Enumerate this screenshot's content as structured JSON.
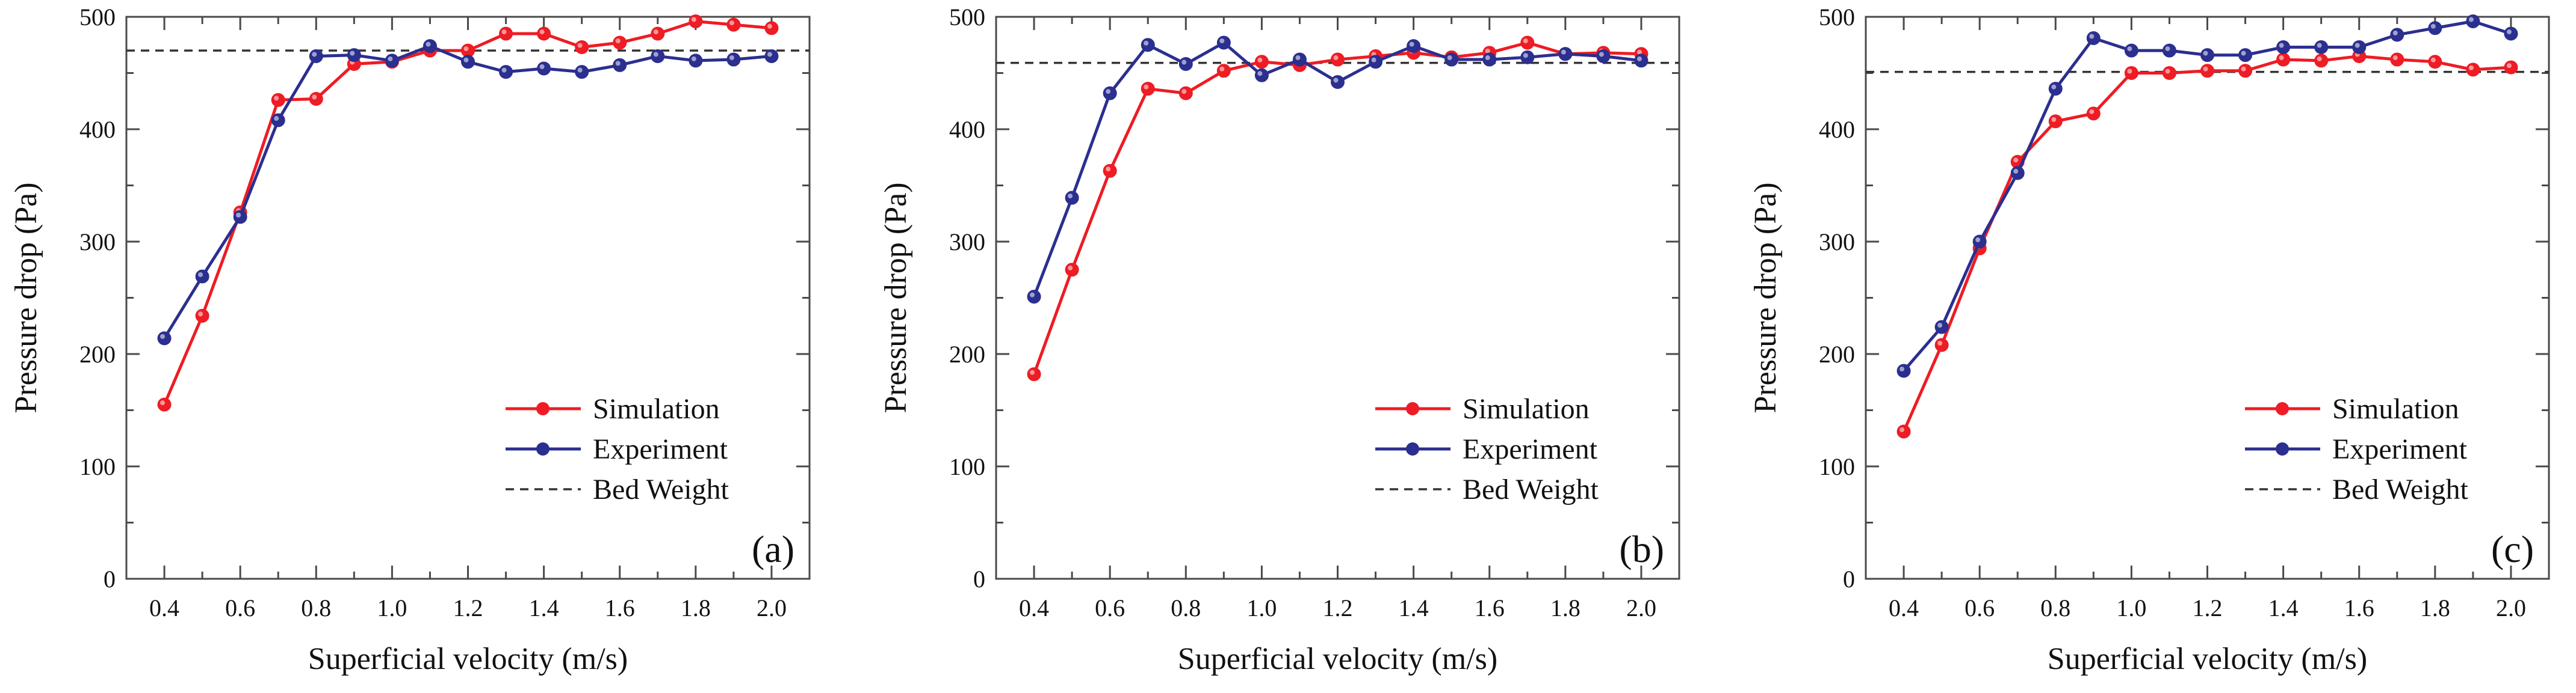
{
  "figure": {
    "description_panels": 3
  },
  "colors": {
    "simulation": "#ee1c24",
    "experiment": "#2b2f8f",
    "bed_weight": "#333333",
    "axis": "#4a4a4a"
  },
  "chart_data": [
    {
      "type": "line",
      "panel_label": "(a)",
      "xlabel": "Superficial velocity (m/s)",
      "ylabel": "Pressure drop (Pa)",
      "xlim": [
        0.3,
        2.1
      ],
      "ylim": [
        0,
        500
      ],
      "xticks": [
        0.4,
        0.6,
        0.8,
        1.0,
        1.2,
        1.4,
        1.6,
        1.8,
        2.0
      ],
      "xtick_labels": [
        "0.4",
        "0.6",
        "0.8",
        "1.0",
        "1.2",
        "1.4",
        "1.6",
        "1.8",
        "2.0"
      ],
      "yticks": [
        0,
        100,
        200,
        300,
        400,
        500
      ],
      "ytick_labels": [
        "0",
        "100",
        "200",
        "300",
        "400",
        "500"
      ],
      "x": [
        0.4,
        0.5,
        0.6,
        0.7,
        0.8,
        0.9,
        1.0,
        1.1,
        1.2,
        1.3,
        1.4,
        1.5,
        1.6,
        1.7,
        1.8,
        1.9,
        2.0
      ],
      "series": [
        {
          "name": "Simulation",
          "values": [
            155,
            234,
            326,
            426,
            427,
            458,
            460,
            470,
            470,
            485,
            485,
            473,
            477,
            485,
            496,
            493,
            490
          ]
        },
        {
          "name": "Experiment",
          "values": [
            214,
            269,
            322,
            408,
            465,
            466,
            461,
            474,
            460,
            451,
            454,
            451,
            457,
            465,
            461,
            462,
            465
          ]
        }
      ],
      "reference": {
        "name": "Bed Weight",
        "value": 470
      },
      "legend": {
        "position": "bottom-right",
        "entries": [
          "Simulation",
          "Experiment",
          "Bed Weight"
        ]
      }
    },
    {
      "type": "line",
      "panel_label": "(b)",
      "xlabel": "Superficial velocity (m/s)",
      "ylabel": "Pressure drop (Pa)",
      "xlim": [
        0.3,
        2.1
      ],
      "ylim": [
        0,
        500
      ],
      "xticks": [
        0.4,
        0.6,
        0.8,
        1.0,
        1.2,
        1.4,
        1.6,
        1.8,
        2.0
      ],
      "xtick_labels": [
        "0.4",
        "0.6",
        "0.8",
        "1.0",
        "1.2",
        "1.4",
        "1.6",
        "1.8",
        "2.0"
      ],
      "yticks": [
        0,
        100,
        200,
        300,
        400,
        500
      ],
      "ytick_labels": [
        "0",
        "100",
        "200",
        "300",
        "400",
        "500"
      ],
      "x": [
        0.4,
        0.5,
        0.6,
        0.7,
        0.8,
        0.9,
        1.0,
        1.1,
        1.2,
        1.3,
        1.4,
        1.5,
        1.6,
        1.7,
        1.8,
        1.9,
        2.0
      ],
      "series": [
        {
          "name": "Simulation",
          "values": [
            182,
            275,
            363,
            436,
            432,
            452,
            460,
            457,
            462,
            465,
            468,
            464,
            468,
            477,
            467,
            468,
            467
          ]
        },
        {
          "name": "Experiment",
          "values": [
            251,
            339,
            432,
            475,
            458,
            477,
            448,
            462,
            442,
            460,
            474,
            462,
            462,
            464,
            467,
            465,
            461
          ]
        }
      ],
      "reference": {
        "name": "Bed Weight",
        "value": 459
      },
      "legend": {
        "position": "bottom-right",
        "entries": [
          "Simulation",
          "Experiment",
          "Bed Weight"
        ]
      }
    },
    {
      "type": "line",
      "panel_label": "(c)",
      "xlabel": "Superficial velocity (m/s)",
      "ylabel": "Pressure drop (Pa)",
      "xlim": [
        0.3,
        2.1
      ],
      "ylim": [
        0,
        500
      ],
      "xticks": [
        0.4,
        0.6,
        0.8,
        1.0,
        1.2,
        1.4,
        1.6,
        1.8,
        2.0
      ],
      "xtick_labels": [
        "0.4",
        "0.6",
        "0.8",
        "1.0",
        "1.2",
        "1.4",
        "1.6",
        "1.8",
        "2.0"
      ],
      "yticks": [
        0,
        100,
        200,
        300,
        400,
        500
      ],
      "ytick_labels": [
        "0",
        "100",
        "200",
        "300",
        "400",
        "500"
      ],
      "x": [
        0.4,
        0.5,
        0.6,
        0.7,
        0.8,
        0.9,
        1.0,
        1.1,
        1.2,
        1.3,
        1.4,
        1.5,
        1.6,
        1.7,
        1.8,
        1.9,
        2.0
      ],
      "series": [
        {
          "name": "Simulation",
          "values": [
            131,
            208,
            294,
            371,
            407,
            414,
            450,
            450,
            452,
            452,
            462,
            461,
            465,
            462,
            460,
            453,
            455
          ]
        },
        {
          "name": "Experiment",
          "values": [
            185,
            224,
            300,
            361,
            436,
            481,
            470,
            470,
            466,
            466,
            473,
            473,
            473,
            484,
            490,
            496,
            485
          ]
        }
      ],
      "reference": {
        "name": "Bed Weight",
        "value": 451
      },
      "legend": {
        "position": "bottom-right",
        "entries": [
          "Simulation",
          "Experiment",
          "Bed Weight"
        ]
      }
    }
  ]
}
